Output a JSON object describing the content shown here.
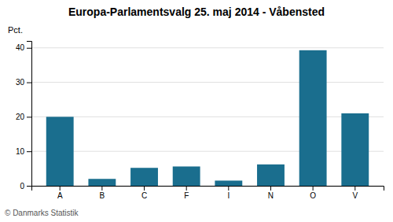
{
  "chart_data": {
    "type": "bar",
    "title": "Europa-Parlamentsvalg 25. maj 2014 - Våbensted",
    "ylabel": "Pct.",
    "annotations": [
      "© Danmarks Statistik"
    ],
    "categories": [
      "A",
      "B",
      "C",
      "F",
      "I",
      "N",
      "O",
      "V"
    ],
    "values": [
      20.0,
      2.0,
      5.2,
      5.6,
      1.5,
      6.2,
      39.3,
      21.0
    ],
    "color": "#1a6e8e",
    "ylim": [
      0,
      42
    ],
    "yticks": [
      0,
      10,
      20,
      30,
      40
    ],
    "grid": true
  }
}
